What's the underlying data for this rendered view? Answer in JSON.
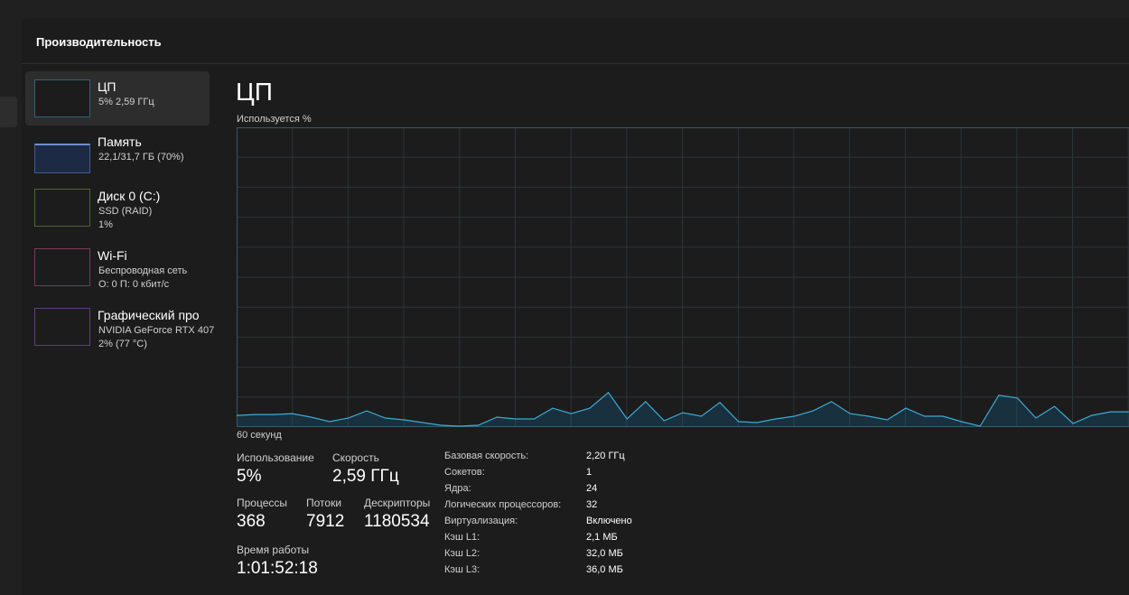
{
  "header": {
    "title": "Производительность"
  },
  "sidebar": {
    "items": [
      {
        "title": "ЦП",
        "lines": [
          "5% 2,59 ГГц"
        ]
      },
      {
        "title": "Память",
        "lines": [
          "22,1/31,7 ГБ (70%)"
        ]
      },
      {
        "title": "Диск 0 (C:)",
        "lines": [
          "SSD (RAID)",
          "1%"
        ]
      },
      {
        "title": "Wi-Fi",
        "lines": [
          "Беспроводная сеть",
          "О: 0 П: 0 кбит/с"
        ]
      },
      {
        "title": "Графический про",
        "lines": [
          "NVIDIA GeForce RTX 407",
          "2% (77 °C)"
        ]
      }
    ]
  },
  "cpu": {
    "title": "ЦП",
    "graph_label": "Используется %",
    "time_label": "60 секунд",
    "graph": {
      "values": [
        3.9,
        4.2,
        4.2,
        4.5,
        3.3,
        1.8,
        3.0,
        5.4,
        3.0,
        2.4,
        1.5,
        0.6,
        0.3,
        0.6,
        3.3,
        2.7,
        2.7,
        6.3,
        4.5,
        6.3,
        11.5,
        2.7,
        8.5,
        2.1,
        4.8,
        3.6,
        8.2,
        1.8,
        1.5,
        2.7,
        3.6,
        5.4,
        8.5,
        4.5,
        3.6,
        2.4,
        6.3,
        3.6,
        3.6,
        1.8,
        0.3,
        10.6,
        9.7,
        3.0,
        6.9,
        1.2,
        3.9,
        5.1,
        5.1
      ]
    },
    "stats": [
      {
        "label": "Использование",
        "value": "5%"
      },
      {
        "label": "Скорость",
        "value": "2,59 ГГц"
      },
      {
        "label": "Процессы",
        "value": "368"
      },
      {
        "label": "Потоки",
        "value": "7912"
      },
      {
        "label": "Дескрипторы",
        "value": "1180534"
      },
      {
        "label": "Время работы",
        "value": "1:01:52:18"
      }
    ],
    "specs": [
      [
        "Базовая скорость:",
        "2,20 ГГц"
      ],
      [
        "Сокетов:",
        "1"
      ],
      [
        "Ядра:",
        "24"
      ],
      [
        "Логических процессоров:",
        "32"
      ],
      [
        "Виртуализация:",
        "Включено"
      ],
      [
        "Кэш L1:",
        "2,1 МБ"
      ],
      [
        "Кэш L2:",
        "32,0 МБ"
      ],
      [
        "Кэш L3:",
        "36,0 МБ"
      ]
    ]
  }
}
